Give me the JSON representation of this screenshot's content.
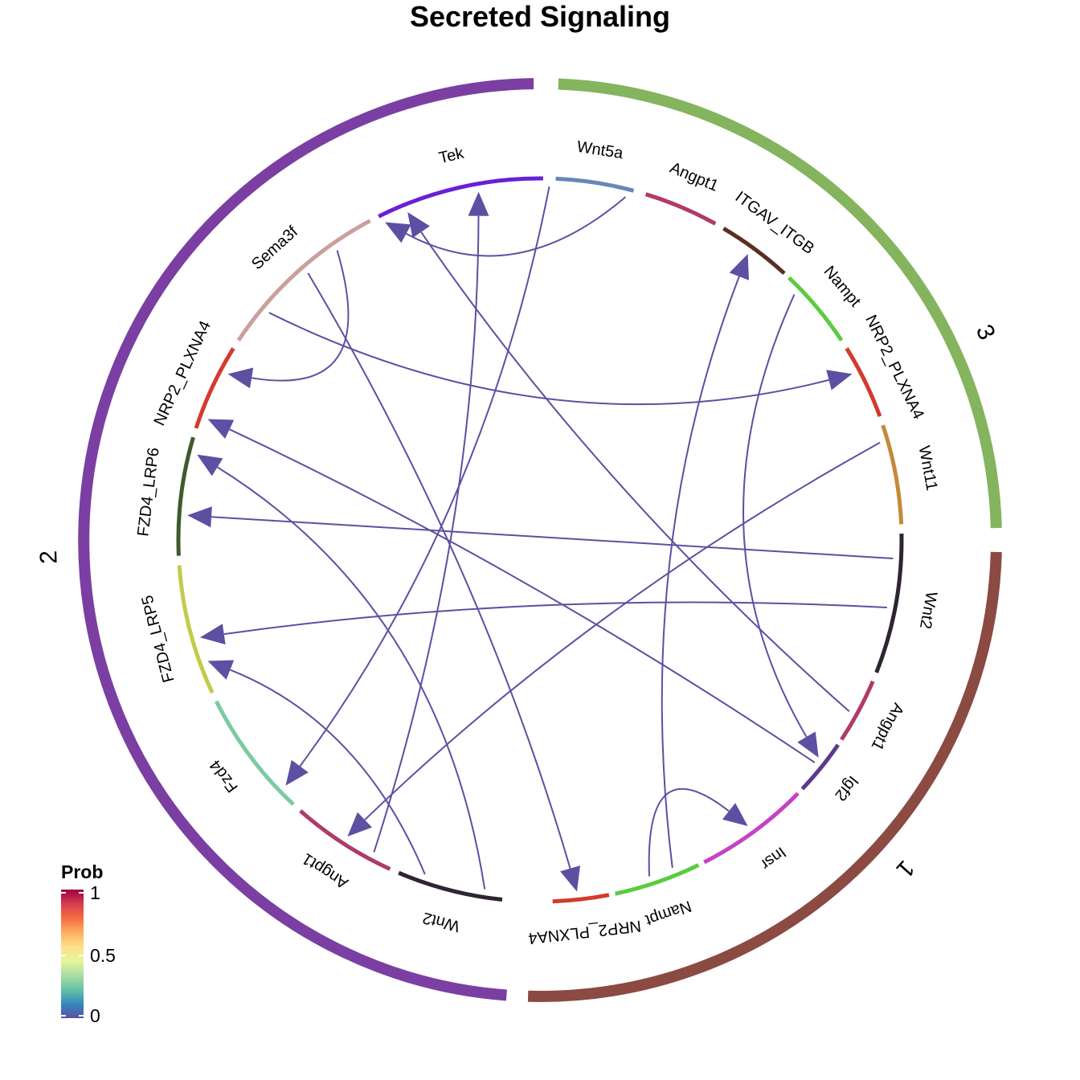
{
  "title": "Secreted Signaling",
  "groups": [
    {
      "name": "1",
      "color": "#8B4A42"
    },
    {
      "name": "2",
      "color": "#7B3FA3"
    },
    {
      "name": "3",
      "color": "#84B45E"
    }
  ],
  "sectors": [
    {
      "id": "g1-nrp2",
      "label": "NRP2_PLXNA4",
      "group": "1",
      "color": "#D43A2E"
    },
    {
      "id": "g1-nampt",
      "label": "Nampt",
      "group": "1",
      "color": "#5CCB3F"
    },
    {
      "id": "g1-insr",
      "label": "Insr",
      "group": "1",
      "color": "#C443C4"
    },
    {
      "id": "g1-igf2",
      "label": "Igf2",
      "group": "1",
      "color": "#5A3A8E"
    },
    {
      "id": "g1-angpt1",
      "label": "Angpt1",
      "group": "1",
      "color": "#B03A6A"
    },
    {
      "id": "g3-wnt2",
      "label": "Wnt2",
      "group": "3",
      "color": "#2E2432"
    },
    {
      "id": "g3-wnt11",
      "label": "Wnt11",
      "group": "3",
      "color": "#C48A3A"
    },
    {
      "id": "g3-nrp2",
      "label": "NRP2_PLXNA4",
      "group": "3",
      "color": "#D43A2E"
    },
    {
      "id": "g3-nampt",
      "label": "Nampt",
      "group": "3",
      "color": "#5CCB3F"
    },
    {
      "id": "g3-itgav",
      "label": "ITGAV_ITGB",
      "group": "3",
      "color": "#5C2E22"
    },
    {
      "id": "g3-angpt1",
      "label": "Angpt1",
      "group": "3",
      "color": "#B03A6A"
    },
    {
      "id": "g2-wnt5a",
      "label": "Wnt5a",
      "group": "2",
      "color": "#6A86B8"
    },
    {
      "id": "g2-tek",
      "label": "Tek",
      "group": "2",
      "color": "#6A1FD6"
    },
    {
      "id": "g2-sema3f",
      "label": "Sema3f",
      "group": "2",
      "color": "#C9A09C"
    },
    {
      "id": "g2-nrp2",
      "label": "NRP2_PLXNA4",
      "group": "2",
      "color": "#D43A2E"
    },
    {
      "id": "g2-fzd4lrp6",
      "label": "FZD4_LRP6",
      "group": "2",
      "color": "#3E5A2E"
    },
    {
      "id": "g2-fzd4lrp5",
      "label": "FZD4_LRP5",
      "group": "2",
      "color": "#C2CC4A"
    },
    {
      "id": "g2-fzd4",
      "label": "Fzd4",
      "group": "2",
      "color": "#7CCBA0"
    },
    {
      "id": "g2-angpt1",
      "label": "Angpt1",
      "group": "2",
      "color": "#B03A6A"
    },
    {
      "id": "g2-wnt2",
      "label": "Wnt2",
      "group": "2",
      "color": "#2E2432"
    }
  ],
  "links": [
    {
      "source": "Wnt5a (2)",
      "target": "Fzd4 (2)",
      "prob": 0.04
    },
    {
      "source": "Angpt1 (3)",
      "target": "Tek (2)",
      "prob": 0.01
    },
    {
      "source": "Nampt (3)",
      "target": "Insr (1)",
      "prob": 0.05
    },
    {
      "source": "Wnt11 (3)",
      "target": "Fzd4 (2)",
      "prob": 0.05
    },
    {
      "source": "Wnt2 (3)",
      "target": "FZD4_LRP6 (2)",
      "prob": 0.01
    },
    {
      "source": "Wnt2 (3)",
      "target": "FZD4_LRP5 (2)",
      "prob": 0.01
    },
    {
      "source": "Angpt1 (1)",
      "target": "Tek (2)",
      "prob": 0.01
    },
    {
      "source": "Igf2 (1)",
      "target": "NRP2_PLXNA4 (2)",
      "prob": 0.01
    },
    {
      "source": "Sema3f (2)",
      "target": "NRP2_PLXNA4 (1)",
      "prob": 0.01
    },
    {
      "source": "Sema3f (2)",
      "target": "NRP2_PLXNA4 (2)",
      "prob": 0.01
    },
    {
      "source": "Sema3f (2)",
      "target": "NRP2_PLXNA4 (3)",
      "prob": 0.01
    },
    {
      "source": "Angpt1 (2)",
      "target": "Tek (2)",
      "prob": 0.01
    },
    {
      "source": "Wnt2 (2)",
      "target": "FZD4_LRP5 (2)",
      "prob": 0.01
    },
    {
      "source": "Wnt2 (2)",
      "target": "FZD4_LRP6 (2)",
      "prob": 0.01
    },
    {
      "source": "Nampt (1)",
      "target": "Insr (1)",
      "prob": 0.05
    },
    {
      "source": "Nampt (1)",
      "target": "ITGAV_ITGB (3)",
      "prob": 0.02
    }
  ],
  "legend": {
    "title": "Prob",
    "ticks": [
      "1",
      "0.5",
      "0"
    ],
    "colors": [
      "#9E0142",
      "#D53E4F",
      "#F46D43",
      "#FDAE61",
      "#FEE08B",
      "#E6F598",
      "#ABDDA4",
      "#66C2A5",
      "#3288BD",
      "#5E4FA2"
    ]
  }
}
